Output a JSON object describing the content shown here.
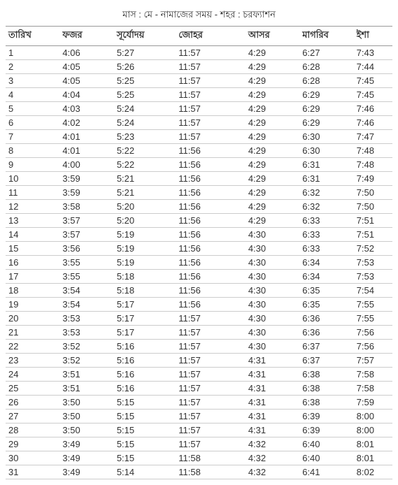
{
  "title": "মাস : মে - নামাজের সময় - শহর : চরফ্যাশন",
  "columns": [
    "তারিখ",
    "ফজর",
    "সূর্যোদয়",
    "জোহর",
    "আসর",
    "মাগরিব",
    "ইশা"
  ],
  "rows": [
    [
      "1",
      "4:06",
      "5:27",
      "11:57",
      "4:29",
      "6:27",
      "7:43"
    ],
    [
      "2",
      "4:05",
      "5:26",
      "11:57",
      "4:29",
      "6:28",
      "7:44"
    ],
    [
      "3",
      "4:05",
      "5:25",
      "11:57",
      "4:29",
      "6:28",
      "7:45"
    ],
    [
      "4",
      "4:04",
      "5:25",
      "11:57",
      "4:29",
      "6:29",
      "7:45"
    ],
    [
      "5",
      "4:03",
      "5:24",
      "11:57",
      "4:29",
      "6:29",
      "7:46"
    ],
    [
      "6",
      "4:02",
      "5:24",
      "11:57",
      "4:29",
      "6:29",
      "7:46"
    ],
    [
      "7",
      "4:01",
      "5:23",
      "11:57",
      "4:29",
      "6:30",
      "7:47"
    ],
    [
      "8",
      "4:01",
      "5:22",
      "11:56",
      "4:29",
      "6:30",
      "7:48"
    ],
    [
      "9",
      "4:00",
      "5:22",
      "11:56",
      "4:29",
      "6:31",
      "7:48"
    ],
    [
      "10",
      "3:59",
      "5:21",
      "11:56",
      "4:29",
      "6:31",
      "7:49"
    ],
    [
      "11",
      "3:59",
      "5:21",
      "11:56",
      "4:29",
      "6:32",
      "7:50"
    ],
    [
      "12",
      "3:58",
      "5:20",
      "11:56",
      "4:29",
      "6:32",
      "7:50"
    ],
    [
      "13",
      "3:57",
      "5:20",
      "11:56",
      "4:29",
      "6:33",
      "7:51"
    ],
    [
      "14",
      "3:57",
      "5:19",
      "11:56",
      "4:30",
      "6:33",
      "7:51"
    ],
    [
      "15",
      "3:56",
      "5:19",
      "11:56",
      "4:30",
      "6:33",
      "7:52"
    ],
    [
      "16",
      "3:55",
      "5:19",
      "11:56",
      "4:30",
      "6:34",
      "7:53"
    ],
    [
      "17",
      "3:55",
      "5:18",
      "11:56",
      "4:30",
      "6:34",
      "7:53"
    ],
    [
      "18",
      "3:54",
      "5:18",
      "11:56",
      "4:30",
      "6:35",
      "7:54"
    ],
    [
      "19",
      "3:54",
      "5:17",
      "11:56",
      "4:30",
      "6:35",
      "7:55"
    ],
    [
      "20",
      "3:53",
      "5:17",
      "11:57",
      "4:30",
      "6:36",
      "7:55"
    ],
    [
      "21",
      "3:53",
      "5:17",
      "11:57",
      "4:30",
      "6:36",
      "7:56"
    ],
    [
      "22",
      "3:52",
      "5:16",
      "11:57",
      "4:30",
      "6:37",
      "7:56"
    ],
    [
      "23",
      "3:52",
      "5:16",
      "11:57",
      "4:31",
      "6:37",
      "7:57"
    ],
    [
      "24",
      "3:51",
      "5:16",
      "11:57",
      "4:31",
      "6:38",
      "7:58"
    ],
    [
      "25",
      "3:51",
      "5:16",
      "11:57",
      "4:31",
      "6:38",
      "7:58"
    ],
    [
      "26",
      "3:50",
      "5:15",
      "11:57",
      "4:31",
      "6:38",
      "7:59"
    ],
    [
      "27",
      "3:50",
      "5:15",
      "11:57",
      "4:31",
      "6:39",
      "8:00"
    ],
    [
      "28",
      "3:50",
      "5:15",
      "11:57",
      "4:31",
      "6:39",
      "8:00"
    ],
    [
      "29",
      "3:49",
      "5:15",
      "11:57",
      "4:32",
      "6:40",
      "8:01"
    ],
    [
      "30",
      "3:49",
      "5:15",
      "11:58",
      "4:32",
      "6:40",
      "8:01"
    ],
    [
      "31",
      "3:49",
      "5:14",
      "11:58",
      "4:32",
      "6:41",
      "8:02"
    ]
  ],
  "styling": {
    "font_family": "Arial, sans-serif",
    "font_size_pt": 10,
    "title_color": "#333333",
    "text_color": "#333333",
    "header_border_color": "#999999",
    "row_border_color": "#cccccc",
    "background_color": "#ffffff"
  }
}
